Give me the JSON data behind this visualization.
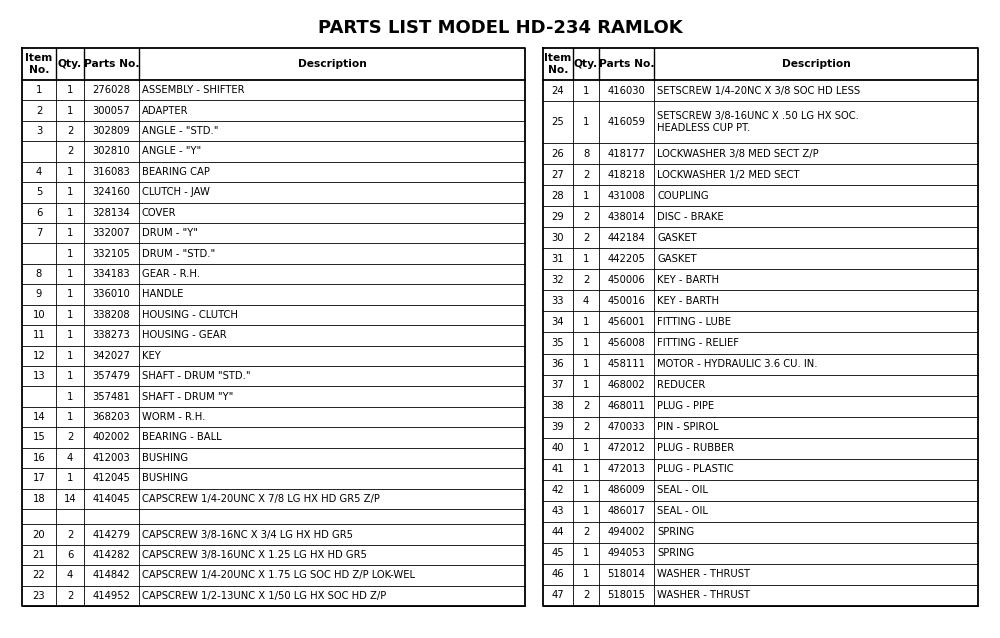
{
  "title": "PARTS LIST MODEL HD-234 RAMLOK",
  "left_rows": [
    [
      "1",
      "1",
      "276028",
      "ASSEMBLY - SHIFTER"
    ],
    [
      "2",
      "1",
      "300057",
      "ADAPTER"
    ],
    [
      "3",
      "2",
      "302809",
      "ANGLE - \"STD.\""
    ],
    [
      "",
      "2",
      "302810",
      "ANGLE - \"Y\""
    ],
    [
      "4",
      "1",
      "316083",
      "BEARING CAP"
    ],
    [
      "5",
      "1",
      "324160",
      "CLUTCH - JAW"
    ],
    [
      "6",
      "1",
      "328134",
      "COVER"
    ],
    [
      "7",
      "1",
      "332007",
      "DRUM - \"Y\""
    ],
    [
      "",
      "1",
      "332105",
      "DRUM - \"STD.\""
    ],
    [
      "8",
      "1",
      "334183",
      "GEAR - R.H."
    ],
    [
      "9",
      "1",
      "336010",
      "HANDLE"
    ],
    [
      "10",
      "1",
      "338208",
      "HOUSING - CLUTCH"
    ],
    [
      "11",
      "1",
      "338273",
      "HOUSING - GEAR"
    ],
    [
      "12",
      "1",
      "342027",
      "KEY"
    ],
    [
      "13",
      "1",
      "357479",
      "SHAFT - DRUM \"STD.\""
    ],
    [
      "",
      "1",
      "357481",
      "SHAFT - DRUM \"Y\""
    ],
    [
      "14",
      "1",
      "368203",
      "WORM - R.H."
    ],
    [
      "15",
      "2",
      "402002",
      "BEARING - BALL"
    ],
    [
      "16",
      "4",
      "412003",
      "BUSHING"
    ],
    [
      "17",
      "1",
      "412045",
      "BUSHING"
    ],
    [
      "18",
      "14",
      "414045",
      "CAPSCREW 1/4-20UNC X 7/8 LG HX HD GR5 Z/P"
    ],
    [
      "",
      "",
      "",
      ""
    ],
    [
      "20",
      "2",
      "414279",
      "CAPSCREW 3/8-16NC X 3/4 LG HX HD GR5"
    ],
    [
      "21",
      "6",
      "414282",
      "CAPSCREW 3/8-16UNC X 1.25 LG HX HD GR5"
    ],
    [
      "22",
      "4",
      "414842",
      "CAPSCREW 1/4-20UNC X 1.75 LG SOC HD Z/P LOK-WEL"
    ],
    [
      "23",
      "2",
      "414952",
      "CAPSCREW 1/2-13UNC X 1/50 LG HX SOC HD Z/P"
    ]
  ],
  "right_rows": [
    [
      "24",
      "1",
      "416030",
      "SETSCREW 1/4-20NC X 3/8 SOC HD LESS"
    ],
    [
      "25",
      "1",
      "416059",
      "SETSCREW 3/8-16UNC X .50 LG HX SOC.\nHEADLESS CUP PT."
    ],
    [
      "26",
      "8",
      "418177",
      "LOCKWASHER 3/8 MED SECT Z/P"
    ],
    [
      "27",
      "2",
      "418218",
      "LOCKWASHER 1/2 MED SECT"
    ],
    [
      "28",
      "1",
      "431008",
      "COUPLING"
    ],
    [
      "29",
      "2",
      "438014",
      "DISC - BRAKE"
    ],
    [
      "30",
      "2",
      "442184",
      "GASKET"
    ],
    [
      "31",
      "1",
      "442205",
      "GASKET"
    ],
    [
      "32",
      "2",
      "450006",
      "KEY - BARTH"
    ],
    [
      "33",
      "4",
      "450016",
      "KEY - BARTH"
    ],
    [
      "34",
      "1",
      "456001",
      "FITTING - LUBE"
    ],
    [
      "35",
      "1",
      "456008",
      "FITTING - RELIEF"
    ],
    [
      "36",
      "1",
      "458111",
      "MOTOR - HYDRAULIC 3.6 CU. IN."
    ],
    [
      "37",
      "1",
      "468002",
      "REDUCER"
    ],
    [
      "38",
      "2",
      "468011",
      "PLUG - PIPE"
    ],
    [
      "39",
      "2",
      "470033",
      "PIN - SPIROL"
    ],
    [
      "40",
      "1",
      "472012",
      "PLUG - RUBBER"
    ],
    [
      "41",
      "1",
      "472013",
      "PLUG - PLASTIC"
    ],
    [
      "42",
      "1",
      "486009",
      "SEAL - OIL"
    ],
    [
      "43",
      "1",
      "486017",
      "SEAL - OIL"
    ],
    [
      "44",
      "2",
      "494002",
      "SPRING"
    ],
    [
      "45",
      "1",
      "494053",
      "SPRING"
    ],
    [
      "46",
      "1",
      "518014",
      "WASHER - THRUST"
    ],
    [
      "47",
      "2",
      "518015",
      "WASHER - THRUST"
    ]
  ],
  "col_headers": [
    "Item\nNo.",
    "Qty.",
    "Parts No.",
    "Description"
  ],
  "bg_color": "#ffffff",
  "text_color": "#000000",
  "border_color": "#000000",
  "font_size": 7.2,
  "title_font_size": 13
}
